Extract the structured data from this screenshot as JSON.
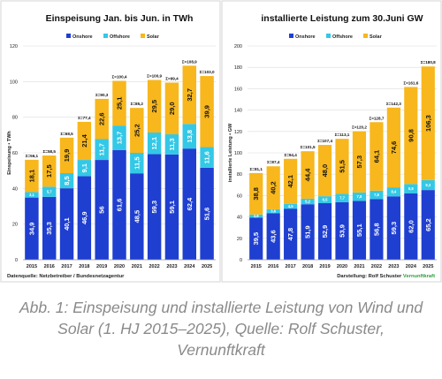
{
  "chart_data": [
    {
      "type": "bar",
      "stacked": true,
      "title": "Einspeisung Jan. bis Jun. in TWh",
      "ylabel": "Einspeisung • TWh",
      "xlabel": "",
      "ylim": [
        0,
        120
      ],
      "yticks": [
        0,
        20,
        40,
        60,
        80,
        100,
        120
      ],
      "grid": true,
      "legend_position": "top",
      "categories": [
        "2015",
        "2016",
        "2017",
        "2018",
        "2019",
        "2020",
        "2021",
        "2022",
        "2023",
        "2024",
        "2025"
      ],
      "series": [
        {
          "name": "Onshore",
          "color": "#1f3fd1",
          "values": [
            34.9,
            35.3,
            40.1,
            46.9,
            56,
            61.6,
            48.5,
            59.3,
            59.1,
            62.4,
            51.6
          ],
          "labels": [
            "34,9",
            "35,3",
            "40,1",
            "46,9",
            "56",
            "61,6",
            "48,5",
            "59,3",
            "59,1",
            "62,4",
            "51,6"
          ]
        },
        {
          "name": "Offshore",
          "color": "#33c8e6",
          "values": [
            3.1,
            5.7,
            8.5,
            9.1,
            11.7,
            13.7,
            11.5,
            12.1,
            11.3,
            13.8,
            11.6
          ],
          "labels": [
            "3,1",
            "5,7",
            "8,5",
            "9,1",
            "11,7",
            "13,7",
            "11,5",
            "12,1",
            "11,3",
            "13,8",
            "11,6"
          ]
        },
        {
          "name": "Solar",
          "color": "#f7b71d",
          "values": [
            18.1,
            17.5,
            19.9,
            21.4,
            22.6,
            25.1,
            25.2,
            29.5,
            29.0,
            32.7,
            39.9
          ],
          "labels": [
            "18,1",
            "17,5",
            "19,9",
            "21,4",
            "22,6",
            "25,1",
            "25,2",
            "29,5",
            "29,0",
            "32,7",
            "39,9"
          ]
        }
      ],
      "totals": [
        56.1,
        58.5,
        68.5,
        77.4,
        90.3,
        100.4,
        85.2,
        100.9,
        99.4,
        108.9,
        103.0
      ],
      "total_labels": [
        "Σ=56,1",
        "Σ=58,5",
        "Σ=68,5",
        "Σ=77,4",
        "Σ=90,3",
        "Σ=100,4",
        "Σ=85,2",
        "Σ=100,9",
        "Σ=99,4",
        "Σ=108,9",
        "Σ=103,0"
      ],
      "source_note": "Datenquelle: Netzbetreiber / Bundesnetzagentur"
    },
    {
      "type": "bar",
      "stacked": true,
      "title": "installierte Leistung zum 30.Juni GW",
      "ylabel": "installierte Leistung • GW",
      "xlabel": "",
      "ylim": [
        0,
        200
      ],
      "yticks": [
        0,
        20,
        40,
        60,
        80,
        100,
        120,
        140,
        160,
        180,
        200
      ],
      "grid": true,
      "legend_position": "top",
      "categories": [
        "2015",
        "2016",
        "2017",
        "2018",
        "2019",
        "2020",
        "2021",
        "2022",
        "2023",
        "2024",
        "2025"
      ],
      "series": [
        {
          "name": "Onshore",
          "color": "#1f3fd1",
          "values": [
            39.5,
            43.6,
            47.8,
            51.9,
            52.9,
            53.9,
            55.1,
            56.8,
            59.3,
            62.0,
            65.2
          ],
          "labels": [
            "39,5",
            "43,6",
            "47,8",
            "51,9",
            "52,9",
            "53,9",
            "55,1",
            "56,8",
            "59,3",
            "62,0",
            "65,2"
          ]
        },
        {
          "name": "Offshore",
          "color": "#33c8e6",
          "values": [
            2.8,
            3.6,
            4.5,
            5.2,
            6.5,
            7.7,
            7.8,
            7.8,
            8.4,
            8.8,
            9.3
          ],
          "labels": [
            "2,8",
            "3,6",
            "4,5",
            "5,2",
            "6,5",
            "7,7",
            "7,8",
            "7,8",
            "8,4",
            "8,8",
            "9,3"
          ]
        },
        {
          "name": "Solar",
          "color": "#f7b71d",
          "values": [
            38.8,
            40.2,
            42.1,
            44.4,
            48.0,
            51.5,
            57.3,
            64.1,
            74.6,
            90.8,
            106.3
          ],
          "labels": [
            "38,8",
            "40,2",
            "42,1",
            "44,4",
            "48,0",
            "51,5",
            "57,3",
            "64,1",
            "74,6",
            "90,8",
            "106,3"
          ]
        }
      ],
      "totals": [
        81.1,
        87.4,
        94.4,
        101.5,
        107.4,
        113.1,
        120.2,
        128.7,
        142.3,
        161.6,
        180.8
      ],
      "total_labels": [
        "Σ=81,1",
        "Σ=87,4",
        "Σ=94,4",
        "Σ=101,5",
        "Σ=107,4",
        "Σ=113,1",
        "Σ=120,2",
        "Σ=128,7",
        "Σ=142,3",
        "Σ=161,6",
        "Σ=180,8"
      ],
      "source_note": "Darstellung: Rolf Schuster",
      "source_brand": "Vernunftkraft"
    }
  ],
  "caption": "Abb. 1: Einspeisung und installierte Leistung von Wind und Solar (1. HJ 2015–2025), Quelle: Rolf Schuster, Vernunftkraft",
  "brand_color": "#2e9e3e"
}
